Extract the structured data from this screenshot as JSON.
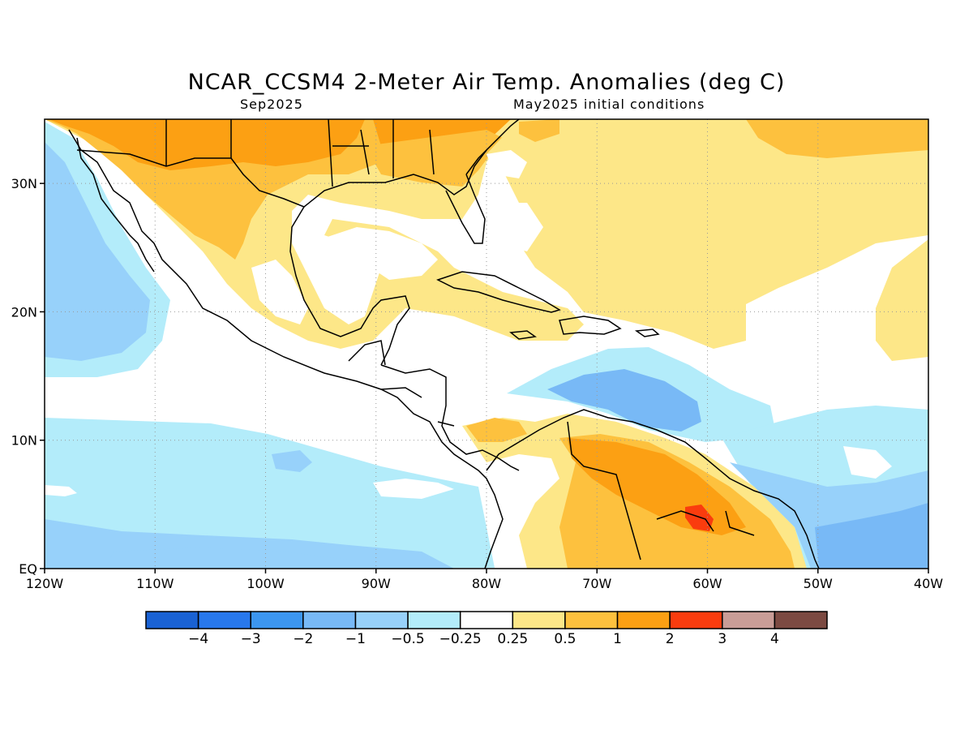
{
  "title": "NCAR_CCSM4 2-Meter Air Temp. Anomalies (deg C)",
  "subtitle_left": "Sep2025",
  "subtitle_right": "May2025 initial conditions",
  "map": {
    "lon_range": [
      -120,
      -40
    ],
    "lat_range": [
      0,
      35
    ],
    "x_ticks": [
      {
        "lon": -120,
        "label": "120W"
      },
      {
        "lon": -110,
        "label": "110W"
      },
      {
        "lon": -100,
        "label": "100W"
      },
      {
        "lon": -90,
        "label": "90W"
      },
      {
        "lon": -80,
        "label": "80W"
      },
      {
        "lon": -70,
        "label": "70W"
      },
      {
        "lon": -60,
        "label": "60W"
      },
      {
        "lon": -50,
        "label": "50W"
      },
      {
        "lon": -40,
        "label": "40W"
      }
    ],
    "y_ticks": [
      {
        "lat": 0,
        "label": "EQ"
      },
      {
        "lat": 10,
        "label": "10N"
      },
      {
        "lat": 20,
        "label": "20N"
      },
      {
        "lat": 30,
        "label": "30N"
      }
    ],
    "grid": true,
    "grid_style": "dotted"
  },
  "colorbar": {
    "colors": [
      "#1a62d4",
      "#2878ec",
      "#3c96f0",
      "#78b9f6",
      "#97d1fa",
      "#b3ecfa",
      "#ffffff",
      "#fde788",
      "#fdc13e",
      "#fca013",
      "#fa3c0e",
      "#c99d97",
      "#7c4a42"
    ],
    "labels": [
      "-4",
      "-3",
      "-2",
      "-1",
      "-0.5",
      "-0.25",
      "0.25",
      "0.5",
      "1",
      "2",
      "3",
      "4"
    ]
  }
}
